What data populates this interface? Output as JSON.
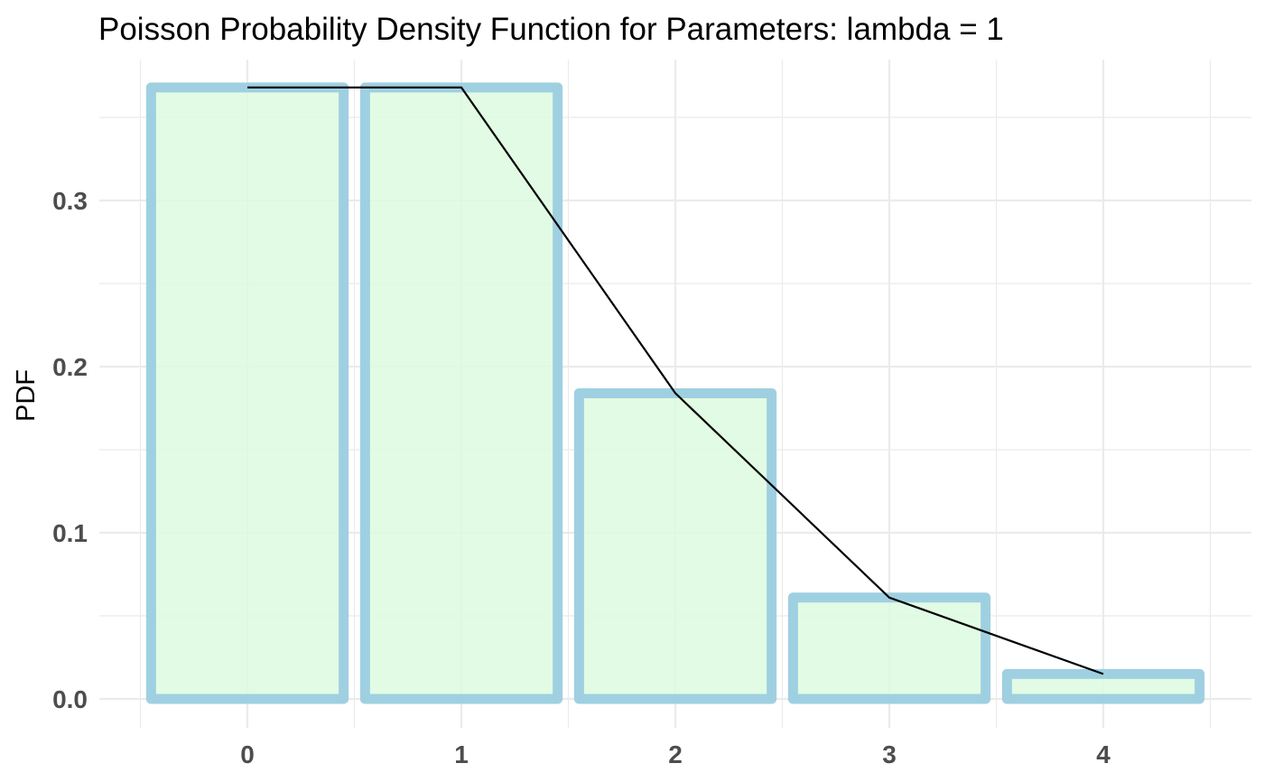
{
  "chart_data": {
    "type": "bar",
    "title": "Poisson Probability Density Function for Parameters: lambda = 1",
    "xlabel": "",
    "ylabel": "PDF",
    "categories": [
      "0",
      "1",
      "2",
      "3",
      "4"
    ],
    "x": [
      0,
      1,
      2,
      3,
      4
    ],
    "values": [
      0.368,
      0.368,
      0.184,
      0.061,
      0.015
    ],
    "line": {
      "x": [
        0,
        1,
        2,
        3,
        4
      ],
      "y": [
        0.368,
        0.368,
        0.184,
        0.061,
        0.015
      ],
      "color": "#000000"
    },
    "xlim": [
      -0.5,
      4.5
    ],
    "ylim": [
      0,
      0.368
    ],
    "x_ticks": [
      0,
      1,
      2,
      3,
      4
    ],
    "y_ticks": [
      0.0,
      0.1,
      0.2,
      0.3
    ],
    "y_tick_labels": [
      "0.0",
      "0.1",
      "0.2",
      "0.3"
    ],
    "grid": true,
    "legend": "none",
    "colors": {
      "bar_fill": "#ddfadf",
      "bar_outline": "#9fd0e1",
      "grid": "#ebebeb",
      "line": "#000000"
    }
  }
}
